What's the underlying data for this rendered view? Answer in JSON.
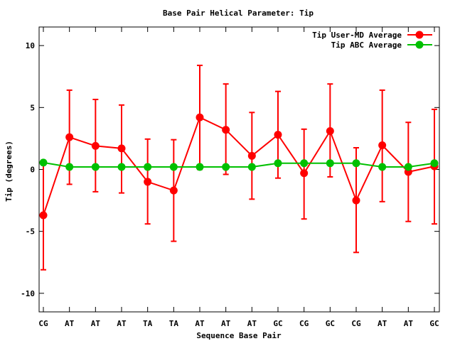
{
  "chart_data": {
    "type": "line",
    "title": "Base Pair Helical Parameter: Tip",
    "xlabel": "Sequence Base Pair",
    "ylabel": "Tip (degrees)",
    "categories": [
      "CG",
      "AT",
      "AT",
      "AT",
      "TA",
      "TA",
      "AT",
      "AT",
      "AT",
      "GC",
      "CG",
      "GC",
      "CG",
      "AT",
      "AT",
      "GC"
    ],
    "ylim": [
      -11.5,
      11.5
    ],
    "yticks": [
      -10,
      -5,
      0,
      5,
      10
    ],
    "legend_position": "top-right",
    "grid": false,
    "series": [
      {
        "name": "Tip User-MD Average",
        "color": "#ff0000",
        "values": [
          -3.7,
          2.6,
          1.9,
          1.7,
          -1.0,
          -1.7,
          4.2,
          3.2,
          1.1,
          2.8,
          -0.3,
          3.1,
          -2.5,
          1.95,
          -0.2,
          0.25
        ],
        "error_low": [
          -8.1,
          -1.2,
          -1.8,
          -1.9,
          -4.4,
          -5.8,
          0.0,
          -0.4,
          -2.4,
          -0.7,
          -4.0,
          -0.6,
          -6.7,
          -2.6,
          -4.2,
          -4.4
        ],
        "error_high": [
          0.7,
          6.4,
          5.65,
          5.2,
          2.45,
          2.4,
          8.4,
          6.9,
          4.6,
          6.3,
          3.25,
          6.9,
          1.75,
          6.4,
          3.8,
          4.85
        ]
      },
      {
        "name": "Tip ABC Average",
        "color": "#00c000",
        "values": [
          0.55,
          0.2,
          0.2,
          0.2,
          0.2,
          0.2,
          0.2,
          0.2,
          0.2,
          0.5,
          0.5,
          0.5,
          0.5,
          0.2,
          0.2,
          0.5
        ]
      }
    ]
  }
}
